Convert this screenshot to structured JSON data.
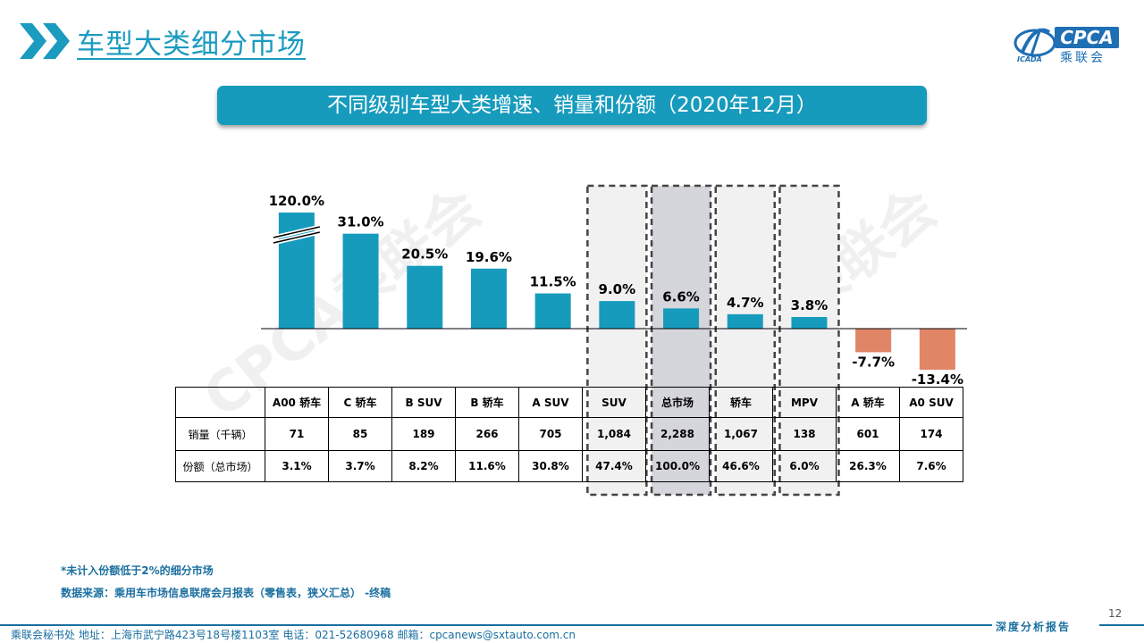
{
  "header": {
    "title": "车型大类细分市场",
    "logo_text": "CPCA",
    "logo_sub": "乘联会",
    "logo_small": "ICADA"
  },
  "banner": "不同级别车型大类增速、销量和份额（2020年12月）",
  "chart_data": {
    "type": "bar",
    "title": "不同级别车型大类增速、销量和份额（2020年12月）",
    "categories": [
      "A00 轿车",
      "C 轿车",
      "B SUV",
      "B 轿车",
      "A SUV",
      "SUV",
      "总市场",
      "轿车",
      "MPV",
      "A 轿车",
      "A0 SUV"
    ],
    "values": [
      120.0,
      31.0,
      20.5,
      19.6,
      11.5,
      9.0,
      6.6,
      4.7,
      3.8,
      -7.7,
      -13.4
    ],
    "value_labels": [
      "120.0%",
      "31.0%",
      "20.5%",
      "19.6%",
      "11.5%",
      "9.0%",
      "6.6%",
      "4.7%",
      "3.8%",
      "-7.7%",
      "-13.4%"
    ],
    "axis_break_on": "A00 轿车",
    "highlighted": [
      "SUV",
      "总市场",
      "轿车",
      "MPV"
    ],
    "colors": {
      "positive": "#169bbd",
      "negative": "#e08566"
    },
    "table": {
      "headers": [
        "A00 轿车",
        "C 轿车",
        "B SUV",
        "B 轿车",
        "A SUV",
        "SUV",
        "总市场",
        "轿车",
        "MPV",
        "A 轿车",
        "A0 SUV"
      ],
      "rows": [
        {
          "label": "销量（千辆）",
          "values": [
            "71",
            "85",
            "189",
            "266",
            "705",
            "1,084",
            "2,288",
            "1,067",
            "138",
            "601",
            "174"
          ]
        },
        {
          "label": "份额（总市场）",
          "values": [
            "3.1%",
            "3.7%",
            "8.2%",
            "11.6%",
            "30.8%",
            "47.4%",
            "100.0%",
            "46.6%",
            "6.0%",
            "26.3%",
            "7.6%"
          ]
        }
      ]
    },
    "watermark": "CPCA乘联会"
  },
  "notes": {
    "note1": "*未计入份额低于2%的细分市场",
    "note2": "数据来源：乘用车市场信息联席会月报表（零售表，狭义汇总）  -终稿"
  },
  "footer": {
    "text": "乘联会秘书处    地址：上海市武宁路423号18号楼1103室     电话：021-52680968      邮箱：cpcanews@sxtauto.com.cn",
    "right": "深度分析报告",
    "page": "12"
  }
}
